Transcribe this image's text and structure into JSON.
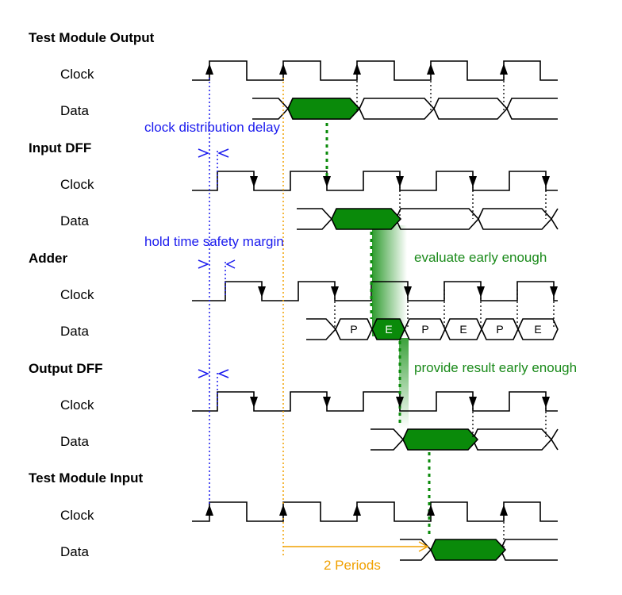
{
  "sections": {
    "test_module_output": "Test Module Output",
    "input_dff": "Input DFF",
    "adder": "Adder",
    "output_dff": "Output DFF",
    "test_module_input": "Test Module Input"
  },
  "signals": {
    "clock": "Clock",
    "data": "Data"
  },
  "annotations": {
    "clock_distribution_delay": "clock distribution delay",
    "hold_time_safety_margin": "hold time safety margin",
    "evaluate_early_enough": "evaluate early enough",
    "provide_result_early_enough": "provide result early enough",
    "two_periods": "2 Periods"
  },
  "adder_phases": [
    "P",
    "E",
    "P",
    "E",
    "P",
    "E"
  ],
  "colors": {
    "green_fill": "#0a8a0a",
    "green_text": "#1a8a1a",
    "blue": "#1a1aee",
    "orange": "#f0a000",
    "black": "#000000"
  }
}
